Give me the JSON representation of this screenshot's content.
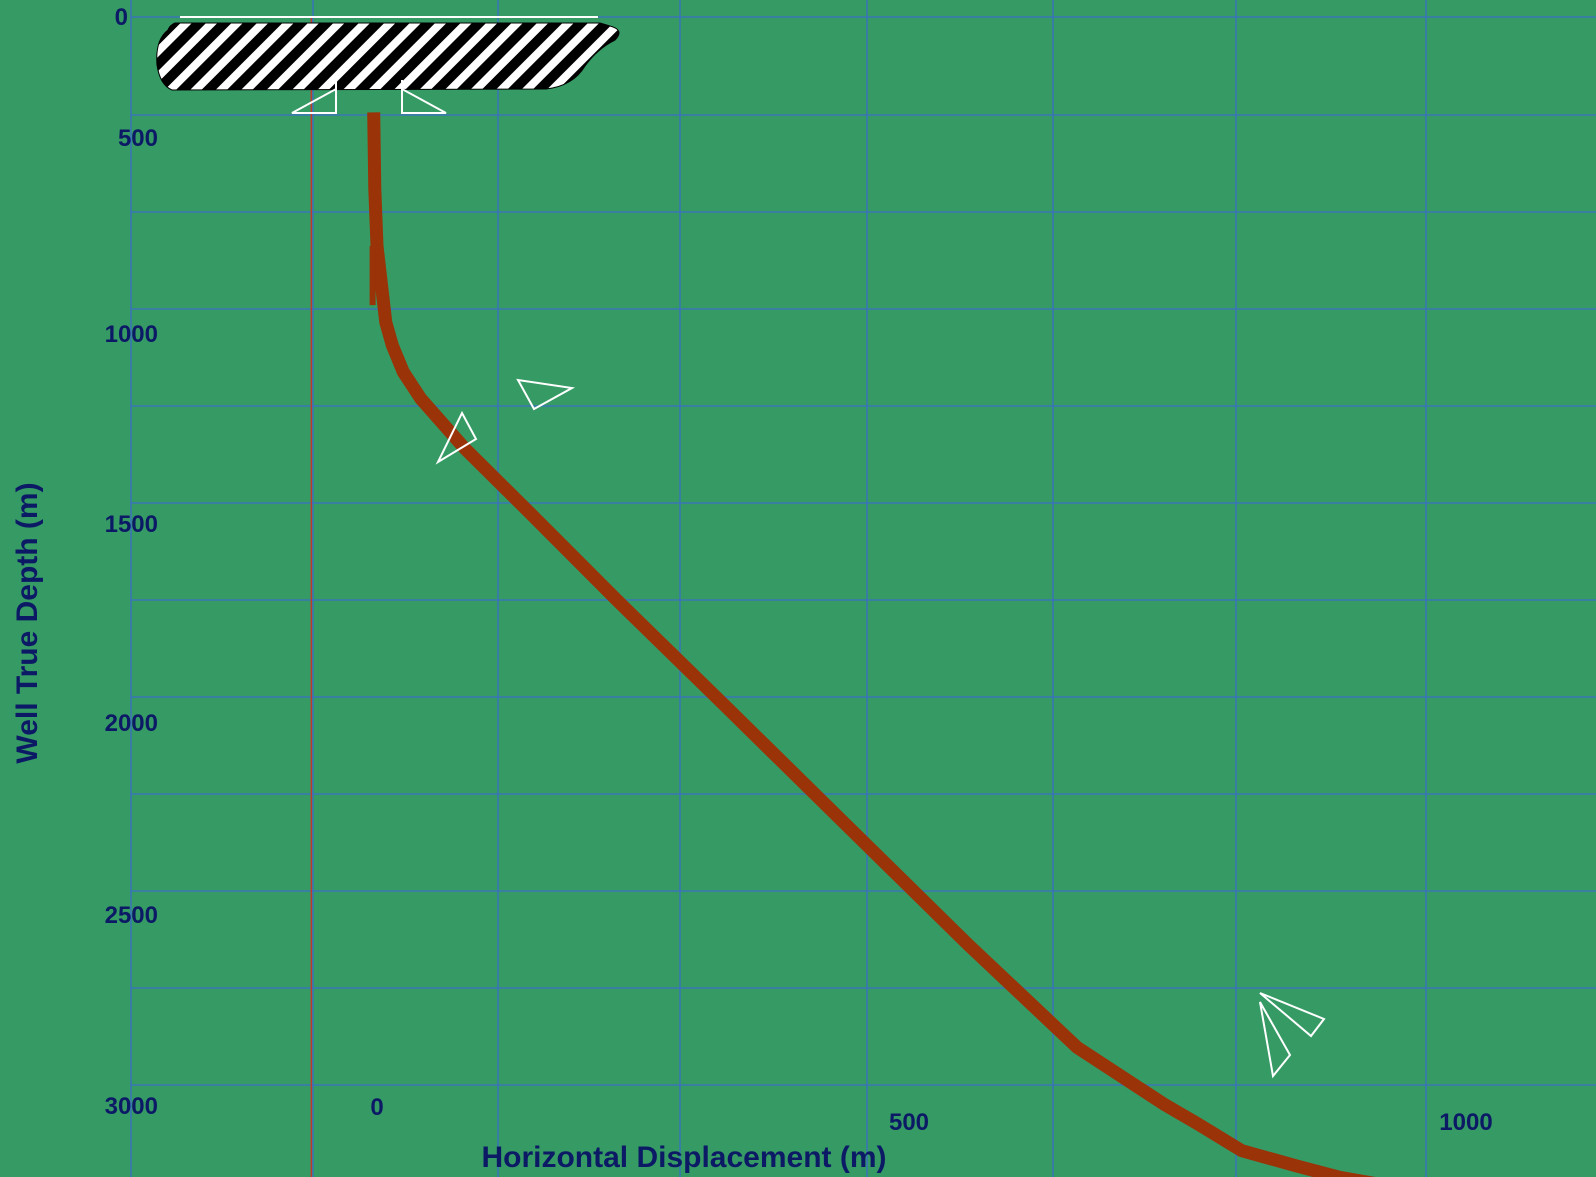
{
  "chart_data": {
    "type": "line",
    "title": "",
    "xlabel": "Horizontal Displacement (m)",
    "ylabel": "Well True Depth (m)",
    "xlim": [
      -130,
      1040
    ],
    "ylim": [
      3000,
      0
    ],
    "y_inverted": true,
    "grid": true,
    "x_ticks": [
      {
        "value": 0,
        "label": "0"
      },
      {
        "value": 500,
        "label": "500"
      },
      {
        "value": 1000,
        "label": "1000"
      }
    ],
    "y_ticks": [
      {
        "value": 0,
        "label": "0"
      },
      {
        "value": 500,
        "label": "500"
      },
      {
        "value": 1000,
        "label": "1000"
      },
      {
        "value": 1500,
        "label": "1500"
      },
      {
        "value": 2000,
        "label": "2000"
      },
      {
        "value": 2500,
        "label": "2500"
      },
      {
        "value": 3000,
        "label": "3000"
      }
    ],
    "reference_line_x": -60,
    "series": [
      {
        "x": [
          -3,
          -2,
          0,
          4,
          8,
          14,
          24,
          40,
          80,
          140,
          220,
          320,
          430,
          540,
          640,
          720,
          750,
          790,
          840,
          880,
          940,
          1004
        ],
        "y": [
          250,
          450,
          600,
          700,
          800,
          860,
          930,
          1000,
          1130,
          1300,
          1530,
          1810,
          2120,
          2430,
          2700,
          2850,
          2900,
          2970,
          3010,
          3040,
          3070,
          3110
        ]
      }
    ],
    "colors": {
      "background": "#369a64",
      "grid": "#3a6fc6",
      "trajectory": "#9a3308",
      "reference_line": "#c0392b",
      "labels": "#0c1a66",
      "markers": "#ffffff"
    },
    "annotations": [
      {
        "type": "hatched-zone",
        "x_range": [
          -80,
          500
        ],
        "y_range": [
          0,
          190
        ]
      },
      {
        "type": "arrowhead",
        "x": 6,
        "y": 200
      },
      {
        "type": "arrowhead",
        "x": 97,
        "y": 200
      },
      {
        "type": "arrowhead",
        "x": 60,
        "y": 1150
      },
      {
        "type": "arrowhead",
        "x": 115,
        "y": 1100
      },
      {
        "type": "arrowhead",
        "x": 790,
        "y": 3045
      },
      {
        "type": "arrowhead",
        "x": 840,
        "y": 2990
      }
    ]
  }
}
